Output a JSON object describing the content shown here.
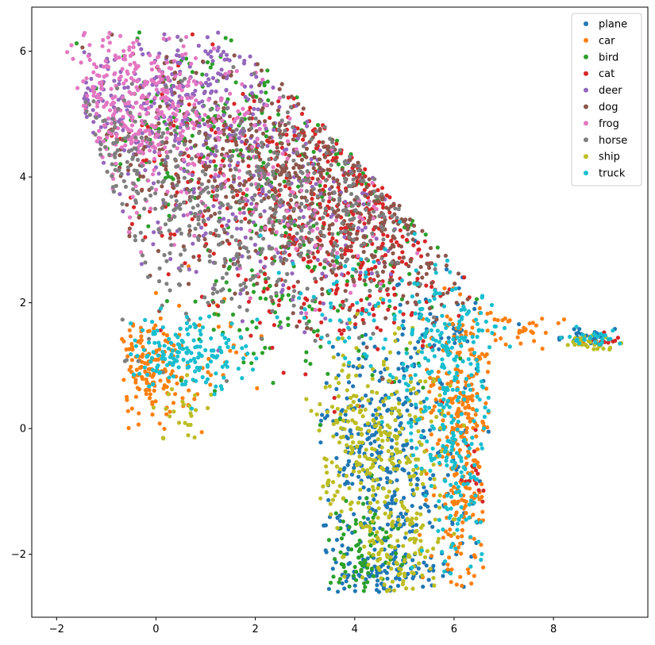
{
  "chart_data": {
    "type": "scatter",
    "title": "",
    "xlabel": "",
    "ylabel": "",
    "xlim": [
      -2.5,
      9.9
    ],
    "ylim": [
      -3.0,
      6.7
    ],
    "xticks": [
      -2,
      0,
      2,
      4,
      6,
      8
    ],
    "yticks": [
      -2,
      0,
      2,
      4,
      6
    ],
    "xtick_labels": [
      "−2",
      "0",
      "2",
      "4",
      "6",
      "8"
    ],
    "ytick_labels": [
      "−2",
      "0",
      "2",
      "4",
      "6"
    ],
    "grid": false,
    "legend_position": "top-right",
    "series": [
      {
        "name": "plane",
        "color": "#1f77b4",
        "clusters": [
          {
            "cx": 4.7,
            "cy": -1.1,
            "sx": 0.75,
            "sy": 0.9,
            "n": 280
          },
          {
            "cx": 4.3,
            "cy": 0.3,
            "sx": 0.6,
            "sy": 0.6,
            "n": 100
          },
          {
            "cx": 8.6,
            "cy": 1.45,
            "sx": 0.35,
            "sy": 0.08,
            "n": 30
          },
          {
            "cx": 5.5,
            "cy": 1.5,
            "sx": 0.7,
            "sy": 0.5,
            "n": 60
          },
          {
            "cx": 4.6,
            "cy": -2.3,
            "sx": 0.5,
            "sy": 0.2,
            "n": 60
          }
        ]
      },
      {
        "name": "car",
        "color": "#ff7f0e",
        "clusters": [
          {
            "cx": -0.2,
            "cy": 0.9,
            "sx": 0.35,
            "sy": 0.35,
            "n": 130
          },
          {
            "cx": 6.2,
            "cy": -0.6,
            "sx": 0.35,
            "sy": 1.0,
            "n": 200
          },
          {
            "cx": 6.2,
            "cy": 0.8,
            "sx": 0.4,
            "sy": 0.6,
            "n": 90
          },
          {
            "cx": 7.3,
            "cy": 1.6,
            "sx": 0.6,
            "sy": 0.25,
            "n": 40
          },
          {
            "cx": 0.8,
            "cy": 1.0,
            "sx": 0.8,
            "sy": 0.6,
            "n": 50
          }
        ]
      },
      {
        "name": "bird",
        "color": "#2ca02c",
        "clusters": [
          {
            "cx": 1.0,
            "cy": 4.8,
            "sx": 1.2,
            "sy": 0.8,
            "n": 160
          },
          {
            "cx": 3.5,
            "cy": 3.0,
            "sx": 1.4,
            "sy": 1.3,
            "n": 170
          },
          {
            "cx": 4.2,
            "cy": -1.9,
            "sx": 0.35,
            "sy": 0.45,
            "n": 80
          },
          {
            "cx": 2.0,
            "cy": 2.0,
            "sx": 0.9,
            "sy": 0.4,
            "n": 40
          }
        ]
      },
      {
        "name": "cat",
        "color": "#d62728",
        "clusters": [
          {
            "cx": 4.0,
            "cy": 3.5,
            "sx": 1.2,
            "sy": 1.1,
            "n": 380
          },
          {
            "cx": 1.0,
            "cy": 4.0,
            "sx": 1.3,
            "sy": 1.0,
            "n": 110
          },
          {
            "cx": 6.4,
            "cy": -0.7,
            "sx": 0.15,
            "sy": 0.3,
            "n": 15
          },
          {
            "cx": 9.1,
            "cy": 1.4,
            "sx": 0.2,
            "sy": 0.05,
            "n": 12
          }
        ]
      },
      {
        "name": "deer",
        "color": "#9467bd",
        "clusters": [
          {
            "cx": 0.6,
            "cy": 5.2,
            "sx": 1.1,
            "sy": 0.6,
            "n": 250
          },
          {
            "cx": 2.5,
            "cy": 3.8,
            "sx": 1.4,
            "sy": 1.0,
            "n": 200
          },
          {
            "cx": -1.3,
            "cy": 5.2,
            "sx": 0.4,
            "sy": 0.3,
            "n": 40
          }
        ]
      },
      {
        "name": "dog",
        "color": "#8c564b",
        "clusters": [
          {
            "cx": 3.5,
            "cy": 4.0,
            "sx": 1.3,
            "sy": 1.0,
            "n": 350
          },
          {
            "cx": 0.8,
            "cy": 4.3,
            "sx": 1.2,
            "sy": 0.9,
            "n": 170
          },
          {
            "cx": 5.3,
            "cy": 3.2,
            "sx": 0.7,
            "sy": 0.8,
            "n": 80
          }
        ]
      },
      {
        "name": "frog",
        "color": "#e377c2",
        "clusters": [
          {
            "cx": -0.6,
            "cy": 5.2,
            "sx": 0.8,
            "sy": 0.6,
            "n": 320
          },
          {
            "cx": 1.2,
            "cy": 4.5,
            "sx": 1.1,
            "sy": 0.8,
            "n": 120
          },
          {
            "cx": 3.2,
            "cy": 3.2,
            "sx": 0.8,
            "sy": 0.7,
            "n": 50
          }
        ]
      },
      {
        "name": "horse",
        "color": "#7f7f7f",
        "clusters": [
          {
            "cx": 1.0,
            "cy": 3.2,
            "sx": 1.2,
            "sy": 0.9,
            "n": 240
          },
          {
            "cx": 3.5,
            "cy": 3.8,
            "sx": 1.2,
            "sy": 1.0,
            "n": 220
          },
          {
            "cx": -1.0,
            "cy": 4.3,
            "sx": 0.5,
            "sy": 0.5,
            "n": 60
          }
        ]
      },
      {
        "name": "ship",
        "color": "#bcbd22",
        "clusters": [
          {
            "cx": 4.4,
            "cy": -0.4,
            "sx": 0.7,
            "sy": 0.9,
            "n": 340
          },
          {
            "cx": 5.0,
            "cy": -2.0,
            "sx": 0.4,
            "sy": 0.4,
            "n": 80
          },
          {
            "cx": 8.8,
            "cy": 1.35,
            "sx": 0.3,
            "sy": 0.07,
            "n": 30
          },
          {
            "cx": 0.6,
            "cy": 0.3,
            "sx": 0.3,
            "sy": 0.3,
            "n": 25
          }
        ]
      },
      {
        "name": "truck",
        "color": "#17becf",
        "clusters": [
          {
            "cx": 0.6,
            "cy": 1.2,
            "sx": 0.6,
            "sy": 0.3,
            "n": 160
          },
          {
            "cx": 5.8,
            "cy": 1.0,
            "sx": 0.6,
            "sy": 0.8,
            "n": 200
          },
          {
            "cx": 6.1,
            "cy": -0.8,
            "sx": 0.4,
            "sy": 0.8,
            "n": 110
          },
          {
            "cx": 4.0,
            "cy": 2.0,
            "sx": 0.9,
            "sy": 0.5,
            "n": 60
          },
          {
            "cx": 8.8,
            "cy": 1.45,
            "sx": 0.3,
            "sy": 0.06,
            "n": 25
          }
        ]
      }
    ]
  }
}
